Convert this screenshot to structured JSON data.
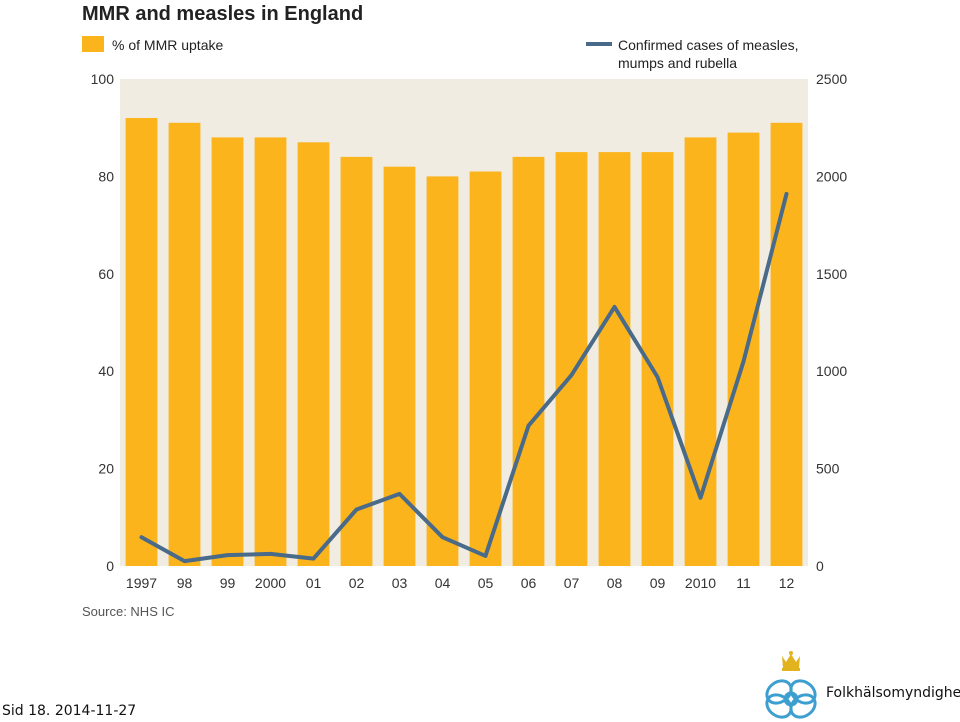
{
  "chart_data": {
    "type": "bar+line",
    "title": "MMR and measles in England",
    "categories": [
      "1997",
      "98",
      "99",
      "2000",
      "01",
      "02",
      "03",
      "04",
      "05",
      "06",
      "07",
      "08",
      "09",
      "2010",
      "11",
      "12"
    ],
    "series": [
      {
        "name": "% of MMR uptake",
        "type": "bar",
        "axis": "left",
        "color": "#fbb41c",
        "values": [
          92,
          91,
          88,
          88,
          87,
          84,
          82,
          80,
          81,
          84,
          85,
          85,
          85,
          88,
          89,
          91
        ]
      },
      {
        "name": "Confirmed cases of measles, mumps and rubella",
        "type": "line",
        "axis": "right",
        "color": "#4a6a8a",
        "values": [
          148,
          25,
          56,
          62,
          38,
          290,
          370,
          148,
          52,
          720,
          980,
          1330,
          970,
          350,
          1050,
          1910
        ]
      }
    ],
    "left_axis": {
      "ylim": [
        0,
        100
      ],
      "ticks": [
        "100",
        "80",
        "60",
        "40",
        "20",
        "0"
      ]
    },
    "right_axis": {
      "ylim": [
        0,
        2500
      ],
      "ticks": [
        "2500",
        "2000",
        "1500",
        "1000",
        "500",
        "0"
      ]
    },
    "legend": {
      "placement": "top",
      "bar_label": "% of MMR uptake",
      "line_label_1": "Confirmed cases of measles,",
      "line_label_2": "mumps and rubella"
    },
    "source": "Source: NHS IC",
    "grid": false,
    "plot_background": "#f0ece1"
  },
  "footer": {
    "slide_info": "Sid 18.  2014-11-27",
    "organization": "Folkhälsomyndigheten"
  }
}
